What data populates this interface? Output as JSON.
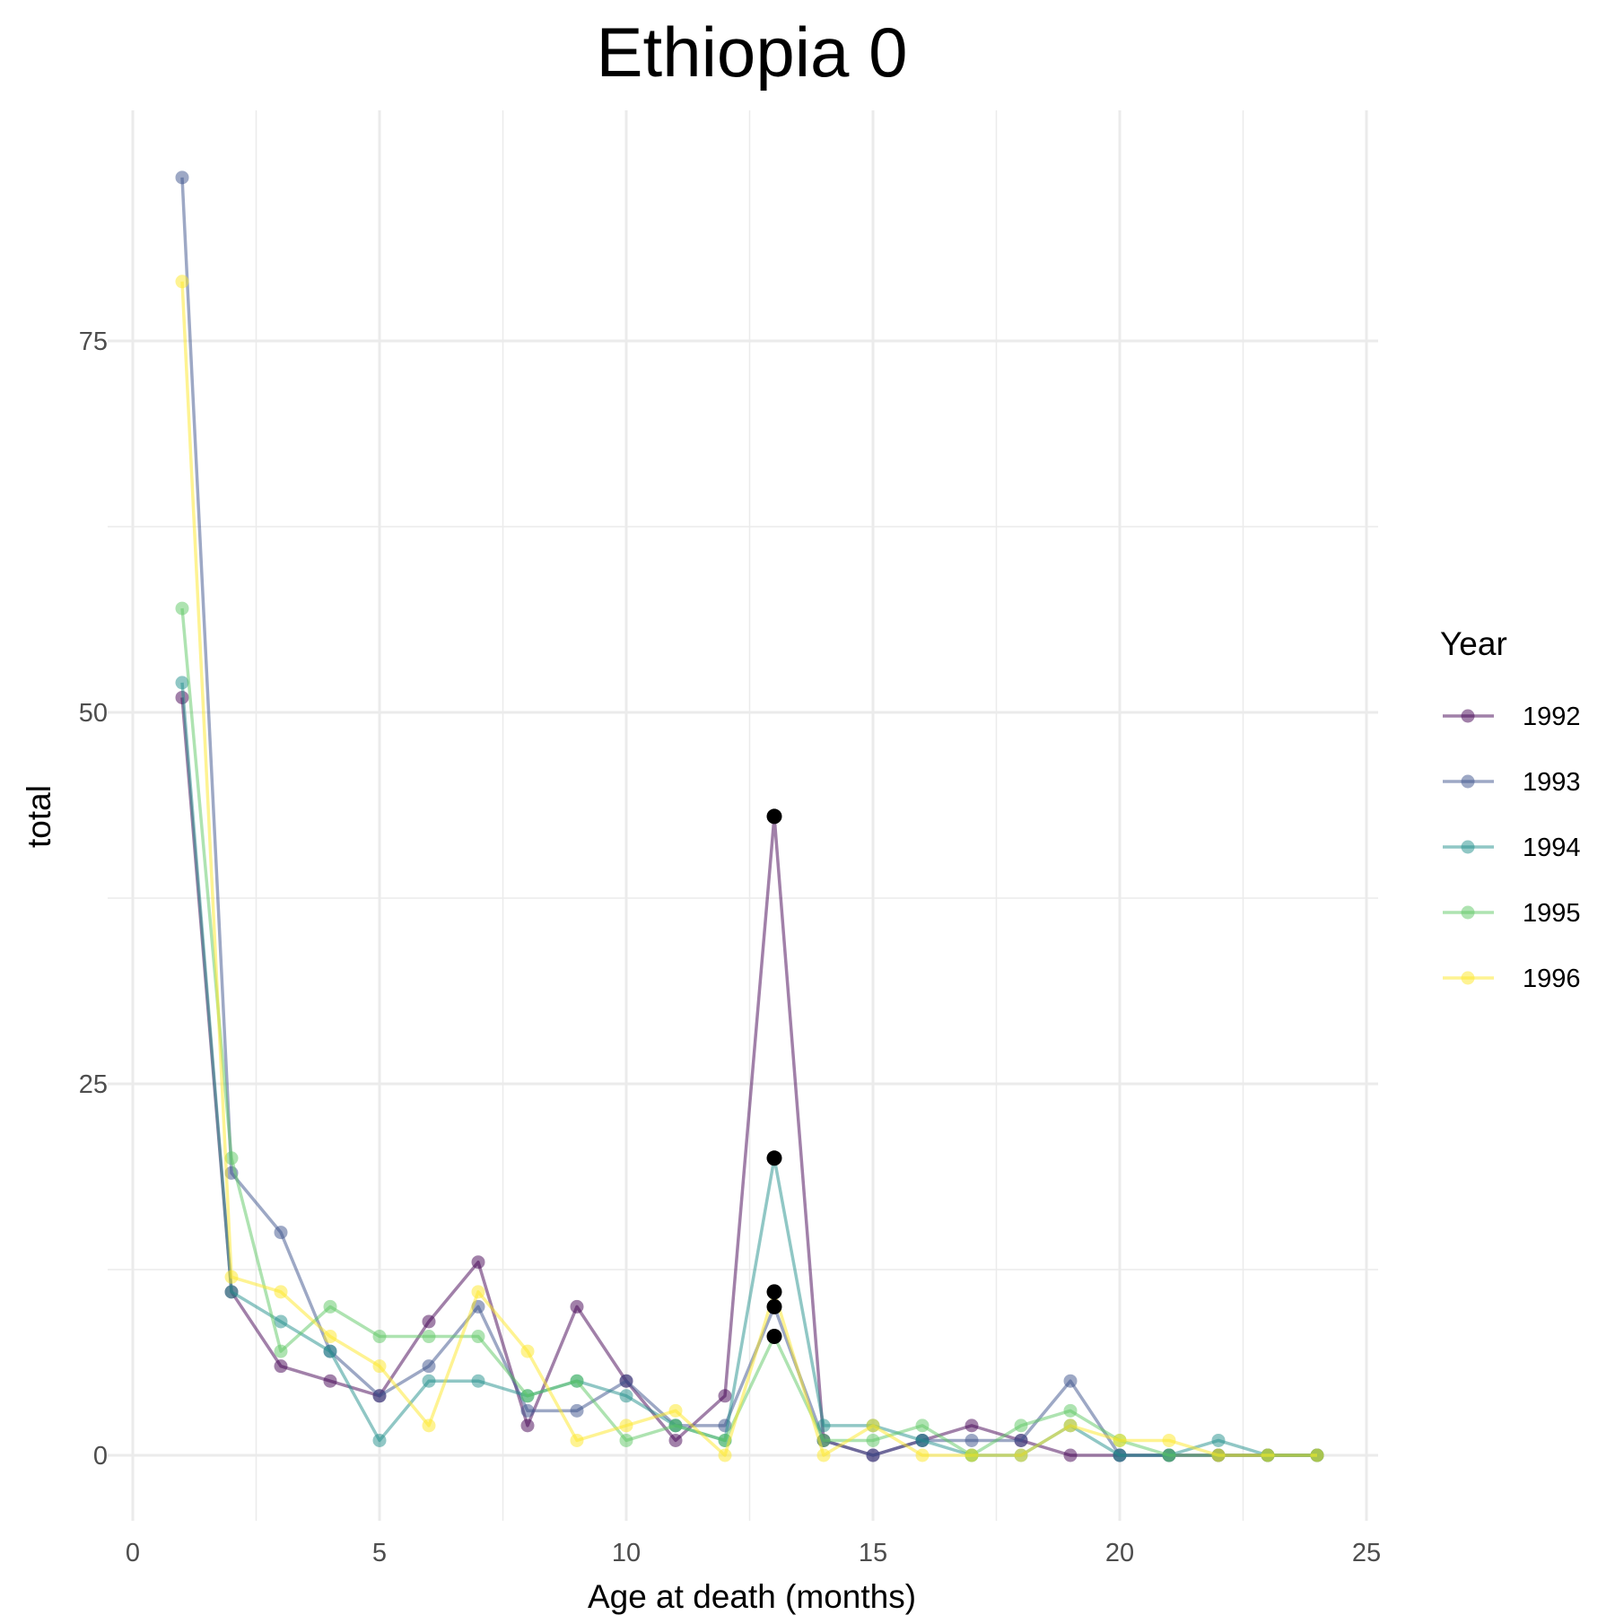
{
  "chart_data": {
    "type": "line",
    "title": "Ethiopia 0",
    "xlabel": "Age at death (months)",
    "ylabel": "total",
    "xlim": [
      0,
      25
    ],
    "ylim": [
      -3,
      87
    ],
    "x_ticks": [
      0,
      5,
      10,
      15,
      20,
      25
    ],
    "y_ticks": [
      0,
      25,
      50,
      75
    ],
    "grid": true,
    "legend": {
      "title": "Year",
      "placement": "right"
    },
    "x": [
      1,
      2,
      3,
      4,
      5,
      6,
      7,
      8,
      9,
      10,
      11,
      12,
      13,
      14,
      15,
      16,
      17,
      18,
      19,
      20,
      21,
      22,
      23,
      24
    ],
    "series": [
      {
        "name": "1992",
        "color": "#440154",
        "values": [
          51,
          11,
          6,
          5,
          4,
          9,
          13,
          2,
          10,
          5,
          1,
          4,
          43,
          1,
          0,
          1,
          2,
          1,
          0,
          0,
          0,
          0,
          0,
          0
        ]
      },
      {
        "name": "1993",
        "color": "#3b528b",
        "values": [
          86,
          19,
          15,
          7,
          4,
          6,
          10,
          3,
          3,
          5,
          2,
          2,
          10,
          1,
          0,
          1,
          1,
          1,
          5,
          0,
          0,
          0,
          0,
          0
        ]
      },
      {
        "name": "1994",
        "color": "#21908c",
        "values": [
          52,
          11,
          9,
          7,
          1,
          5,
          5,
          4,
          5,
          4,
          2,
          1,
          20,
          2,
          2,
          1,
          0,
          0,
          2,
          0,
          0,
          1,
          0,
          0
        ]
      },
      {
        "name": "1995",
        "color": "#5dc863",
        "values": [
          57,
          20,
          7,
          10,
          8,
          8,
          8,
          4,
          5,
          1,
          2,
          1,
          8,
          1,
          1,
          2,
          0,
          2,
          3,
          1,
          0,
          0,
          0,
          0
        ]
      },
      {
        "name": "1996",
        "color": "#fde725",
        "values": [
          79,
          12,
          11,
          8,
          6,
          2,
          11,
          7,
          1,
          2,
          3,
          0,
          11,
          0,
          2,
          0,
          0,
          0,
          2,
          1,
          1,
          0,
          0,
          0
        ]
      }
    ],
    "highlighted_points": {
      "x": 13,
      "values": [
        43,
        20,
        11,
        10,
        8
      ],
      "color": "#000000"
    }
  }
}
